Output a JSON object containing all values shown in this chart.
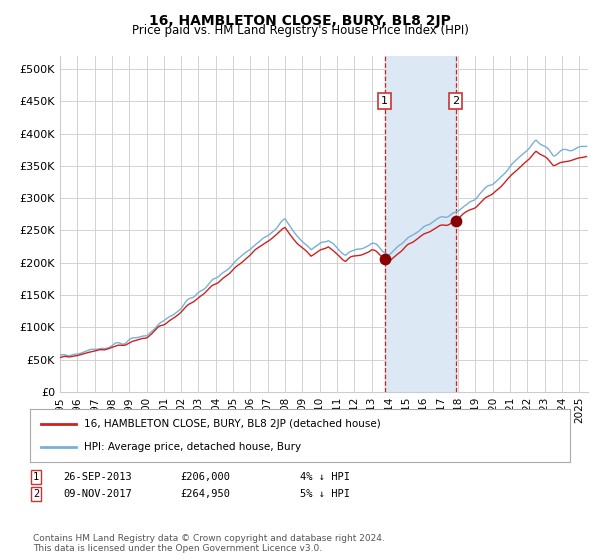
{
  "title": "16, HAMBLETON CLOSE, BURY, BL8 2JP",
  "subtitle": "Price paid vs. HM Land Registry's House Price Index (HPI)",
  "legend_line1": "16, HAMBLETON CLOSE, BURY, BL8 2JP (detached house)",
  "legend_line2": "HPI: Average price, detached house, Bury",
  "transaction1_label": "1",
  "transaction1_date": "26-SEP-2013",
  "transaction1_price": 206000,
  "transaction1_note": "4% ↓ HPI",
  "transaction2_label": "2",
  "transaction2_date": "09-NOV-2017",
  "transaction2_price": 264950,
  "transaction2_note": "5% ↓ HPI",
  "transaction1_year": 2013.75,
  "transaction2_year": 2017.85,
  "hpi_line_color": "#7ab0d4",
  "price_line_color": "#cc2222",
  "dot_color": "#880000",
  "shading_color": "#dce8f3",
  "dashed_line_color": "#cc2222",
  "grid_color": "#cccccc",
  "background_color": "#ffffff",
  "ylim": [
    0,
    520000
  ],
  "xlim_start": 1995.0,
  "xlim_end": 2025.5,
  "yticks": [
    0,
    50000,
    100000,
    150000,
    200000,
    250000,
    300000,
    350000,
    400000,
    450000,
    500000
  ],
  "ytick_labels": [
    "£0",
    "£50K",
    "£100K",
    "£150K",
    "£200K",
    "£250K",
    "£300K",
    "£350K",
    "£400K",
    "£450K",
    "£500K"
  ],
  "xtick_years": [
    1995,
    1996,
    1997,
    1998,
    1999,
    2000,
    2001,
    2002,
    2003,
    2004,
    2005,
    2006,
    2007,
    2008,
    2009,
    2010,
    2011,
    2012,
    2013,
    2014,
    2015,
    2016,
    2017,
    2018,
    2019,
    2020,
    2021,
    2022,
    2023,
    2024,
    2025
  ],
  "footnote": "Contains HM Land Registry data © Crown copyright and database right 2024.\nThis data is licensed under the Open Government Licence v3.0."
}
